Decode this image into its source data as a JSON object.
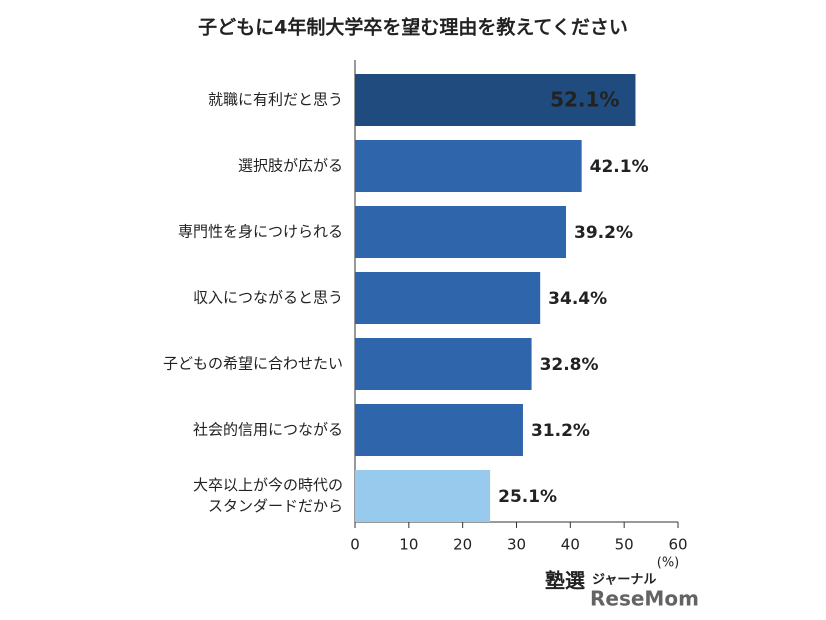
{
  "chart_data": {
    "type": "hbar",
    "title": "子どもに4年制大学卒を望む理由を教えてください",
    "categories": [
      "就職に有利だと思う",
      "選択肢が広がる",
      "専門性を身につけられる",
      "収入につながると思う",
      "子どもの希望に合わせたい",
      "社会的信用につながる",
      "大卒以上が今の時代の\nスタンダードだから"
    ],
    "values": [
      52.1,
      42.1,
      39.2,
      34.4,
      32.8,
      31.2,
      25.1
    ],
    "value_labels": [
      "52.1%",
      "42.1%",
      "39.2%",
      "34.4%",
      "32.8%",
      "31.2%",
      "25.1%"
    ],
    "colors": [
      "#1f4b7e",
      "#2f65aa",
      "#2f65aa",
      "#2f65aa",
      "#2f65aa",
      "#2f65aa",
      "#98caee"
    ],
    "label_position": [
      "inside",
      "outside",
      "outside",
      "outside",
      "outside",
      "outside",
      "outside"
    ],
    "xlim": [
      0,
      60
    ],
    "xticks": [
      0,
      10,
      20,
      30,
      40,
      50,
      60
    ],
    "x_unit": "(%)",
    "watermark": [
      "塾選",
      "ジャーナル",
      "ReseMom"
    ]
  }
}
